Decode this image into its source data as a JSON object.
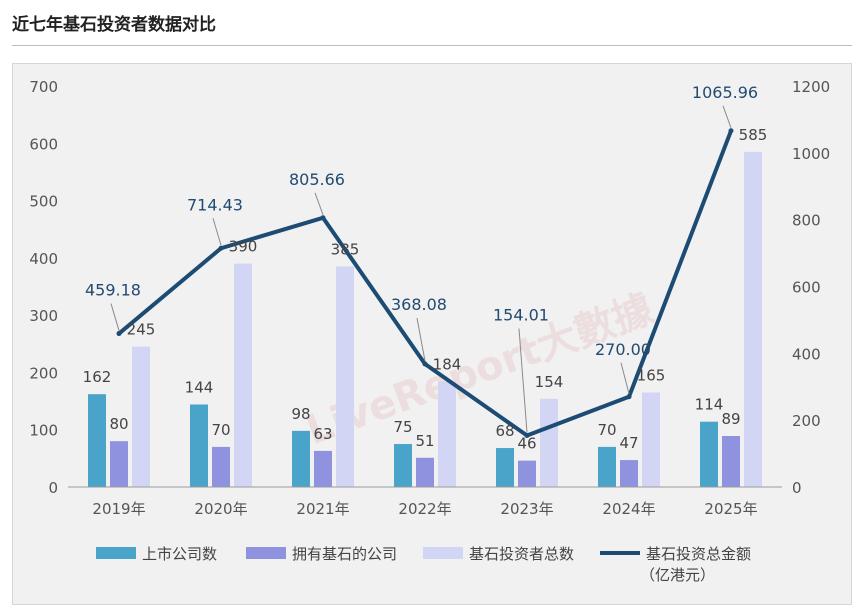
{
  "page": {
    "title": "近七年基石投资者数据对比",
    "watermark": "LiveReport大數據"
  },
  "chart_data": {
    "type": "bar",
    "categories": [
      "2019年",
      "2020年",
      "2021年",
      "2022年",
      "2023年",
      "2024年",
      "2025年"
    ],
    "series": [
      {
        "name": "上市公司数",
        "type": "bar",
        "axis": "left",
        "color": "#4aa3c9",
        "values": [
          162,
          144,
          98,
          75,
          68,
          70,
          114
        ]
      },
      {
        "name": "拥有基石的公司",
        "type": "bar",
        "axis": "left",
        "color": "#8f93df",
        "values": [
          80,
          70,
          63,
          51,
          46,
          47,
          89
        ]
      },
      {
        "name": "基石投资者总数",
        "type": "bar",
        "axis": "left",
        "color": "#d3d5f4",
        "values": [
          245,
          390,
          385,
          184,
          154,
          165,
          585
        ]
      },
      {
        "name": "基石投资总金额",
        "name_line2": "（亿港元）",
        "type": "line",
        "axis": "right",
        "color": "#1c4b73",
        "values": [
          459.18,
          714.43,
          805.66,
          368.08,
          154.01,
          270.0,
          1065.96
        ],
        "labels": [
          "459.18",
          "714.43",
          "805.66",
          "368.08",
          "154.01",
          "270.00",
          "1065.96"
        ]
      }
    ],
    "y_left": {
      "lim": [
        0,
        700
      ],
      "ticks": [
        0,
        100,
        200,
        300,
        400,
        500,
        600,
        700
      ]
    },
    "y_right": {
      "lim": [
        0,
        1200
      ],
      "ticks": [
        0,
        200,
        400,
        600,
        800,
        1000,
        1200
      ]
    },
    "grid": false,
    "legend_position": "bottom"
  }
}
